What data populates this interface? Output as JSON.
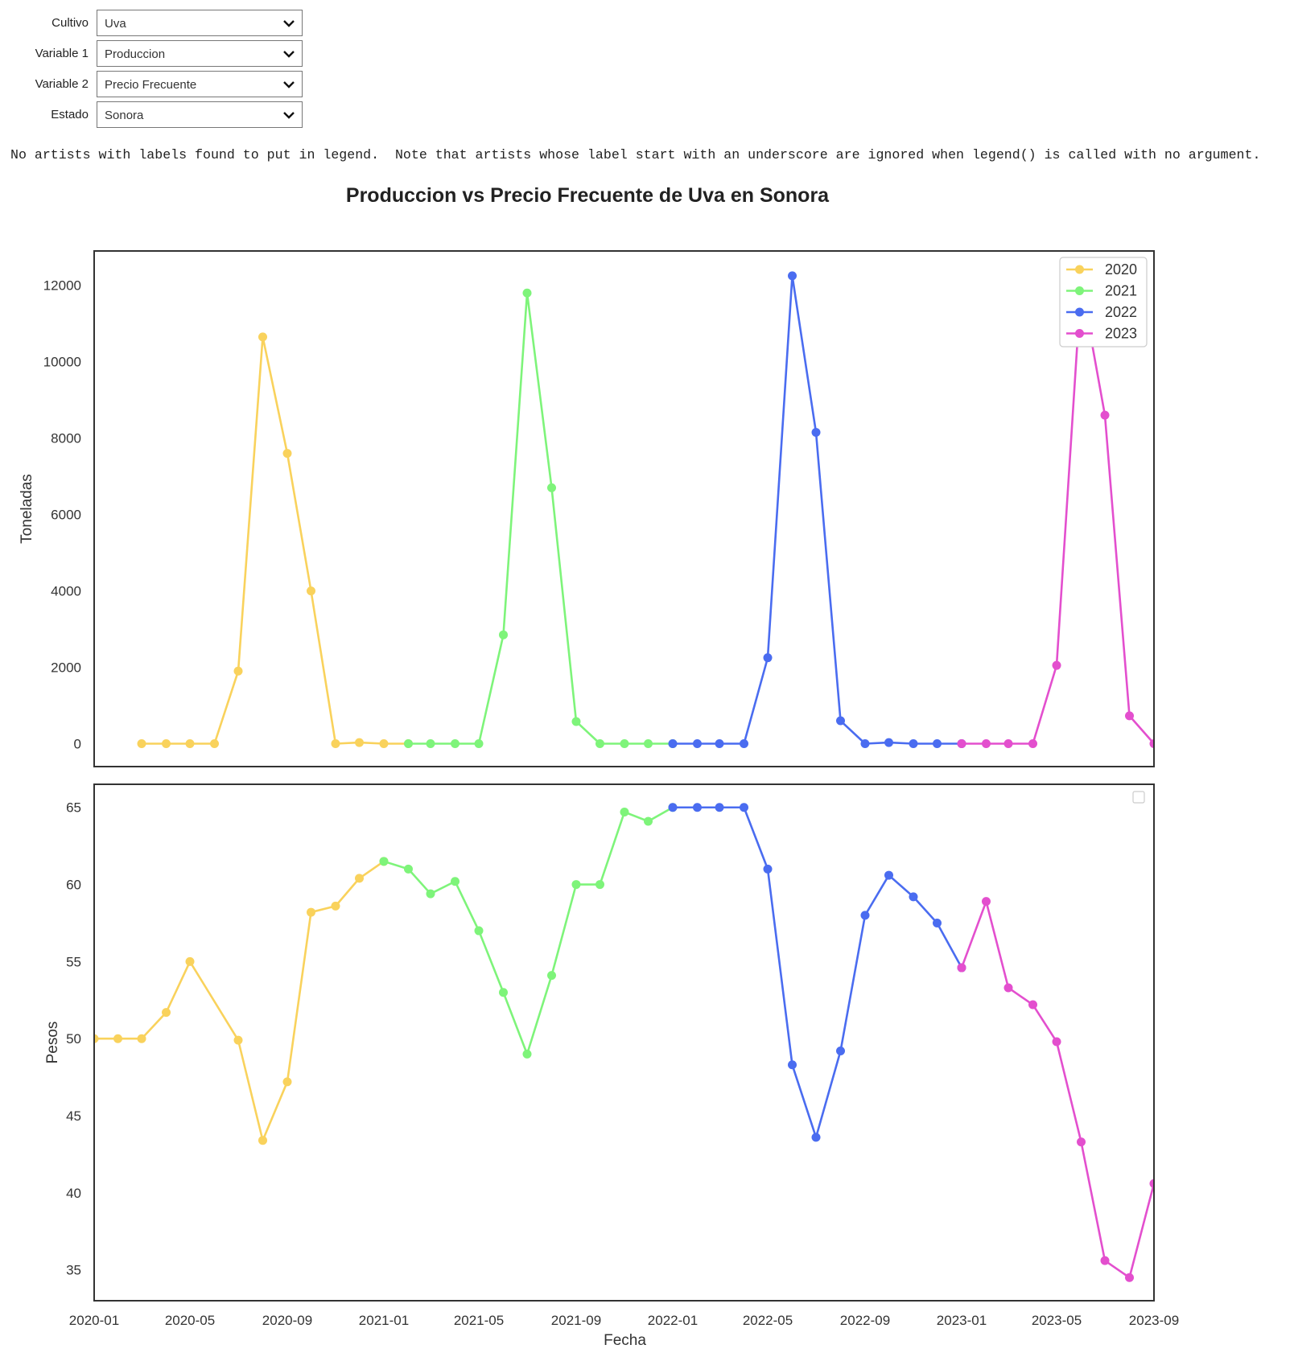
{
  "controls": [
    {
      "label": "Cultivo",
      "value": "Uva"
    },
    {
      "label": "Variable 1",
      "value": "Produccion"
    },
    {
      "label": "Variable 2",
      "value": "Precio Frecuente"
    },
    {
      "label": "Estado",
      "value": "Sonora"
    }
  ],
  "warning_text": "No artists with labels found to put in legend.  Note that artists whose label start with an underscore are ignored when legend() is called with no argument.",
  "colors": {
    "2020": "#f9d25c",
    "2021": "#7ef47a",
    "2022": "#4a6cf0",
    "2023": "#e34fce"
  },
  "chart_data": [
    {
      "type": "line",
      "title": "Produccion vs Precio Frecuente de Uva en Sonora",
      "xlabel": "",
      "ylabel": "Toneladas",
      "ylim": [
        -600,
        12900
      ],
      "yticks": [
        0,
        2000,
        4000,
        6000,
        8000,
        10000,
        12000
      ],
      "xlim": [
        "2020-01-01",
        "2023-09-01"
      ],
      "grid": false,
      "legend": "top-right",
      "series": [
        {
          "name": "2020",
          "color": "#f9d25c",
          "x": [
            "2020-03",
            "2020-04",
            "2020-05",
            "2020-06",
            "2020-07",
            "2020-08",
            "2020-09",
            "2020-10",
            "2020-11",
            "2020-12",
            "2021-01",
            "2021-02"
          ],
          "y": [
            0,
            0,
            0,
            0,
            1900,
            10650,
            7600,
            4000,
            0,
            30,
            0,
            0
          ]
        },
        {
          "name": "2021",
          "color": "#7ef47a",
          "x": [
            "2021-02",
            "2021-03",
            "2021-04",
            "2021-05",
            "2021-06",
            "2021-07",
            "2021-08",
            "2021-09",
            "2021-10",
            "2021-11",
            "2021-12",
            "2022-01"
          ],
          "y": [
            0,
            0,
            0,
            0,
            2850,
            11800,
            6700,
            580,
            0,
            0,
            0,
            0
          ]
        },
        {
          "name": "2022",
          "color": "#4a6cf0",
          "x": [
            "2022-01",
            "2022-02",
            "2022-03",
            "2022-04",
            "2022-05",
            "2022-06",
            "2022-07",
            "2022-08",
            "2022-09",
            "2022-10",
            "2022-11",
            "2022-12",
            "2023-01"
          ],
          "y": [
            0,
            0,
            0,
            0,
            2250,
            12250,
            8150,
            600,
            0,
            30,
            0,
            0,
            0
          ]
        },
        {
          "name": "2023",
          "color": "#e34fce",
          "x": [
            "2023-01",
            "2023-02",
            "2023-03",
            "2023-04",
            "2023-05",
            "2023-06",
            "2023-07",
            "2023-08",
            "2023-09"
          ],
          "y": [
            0,
            0,
            0,
            0,
            2050,
            12050,
            8600,
            730,
            0
          ]
        }
      ]
    },
    {
      "type": "line",
      "xlabel": "Fecha",
      "ylabel": "Pesos",
      "ylim": [
        33,
        66.5
      ],
      "yticks": [
        35,
        40,
        45,
        50,
        55,
        60,
        65
      ],
      "xlim": [
        "2020-01-01",
        "2023-09-01"
      ],
      "xticks": [
        "2020-01",
        "2020-05",
        "2020-09",
        "2021-01",
        "2021-05",
        "2021-09",
        "2022-01",
        "2022-05",
        "2022-09",
        "2023-01",
        "2023-05",
        "2023-09"
      ],
      "grid": false,
      "legend": "top-right (empty)",
      "series": [
        {
          "name": "2020",
          "color": "#f9d25c",
          "x": [
            "2020-01-01",
            "2020-01-31",
            "2020-03-01",
            "2020-04-01",
            "2020-05-01",
            "2020-07-01",
            "2020-08-01",
            "2020-09-01",
            "2020-10-01",
            "2020-11-01",
            "2020-12-01",
            "2021-01-01"
          ],
          "y": [
            50,
            50,
            50,
            51.7,
            55,
            49.9,
            43.4,
            47.2,
            58.2,
            58.6,
            60.4,
            61.5
          ]
        },
        {
          "name": "2021",
          "color": "#7ef47a",
          "x": [
            "2021-01-01",
            "2021-02-01",
            "2021-03-01",
            "2021-04-01",
            "2021-05-01",
            "2021-06-01",
            "2021-07-01",
            "2021-08-01",
            "2021-09-01",
            "2021-10-01",
            "2021-11-01",
            "2021-12-01",
            "2022-01-01"
          ],
          "y": [
            61.5,
            61,
            59.4,
            60.2,
            57,
            53,
            49,
            54.1,
            60,
            60,
            64.7,
            64.1,
            65
          ]
        },
        {
          "name": "2022",
          "color": "#4a6cf0",
          "x": [
            "2022-01-01",
            "2022-02-01",
            "2022-03-01",
            "2022-04-01",
            "2022-05-01",
            "2022-06-01",
            "2022-07-01",
            "2022-08-01",
            "2022-09-01",
            "2022-10-01",
            "2022-11-01",
            "2022-12-01",
            "2023-01-01"
          ],
          "y": [
            65,
            65,
            65,
            65,
            61,
            48.3,
            43.6,
            49.2,
            58,
            60.6,
            59.2,
            57.5,
            54.6
          ]
        },
        {
          "name": "2023",
          "color": "#e34fce",
          "x": [
            "2023-01-01",
            "2023-02-01",
            "2023-03-01",
            "2023-04-01",
            "2023-05-01",
            "2023-06-01",
            "2023-07-01",
            "2023-08-01",
            "2023-09-01"
          ],
          "y": [
            54.6,
            58.9,
            53.3,
            52.2,
            49.8,
            43.3,
            35.6,
            34.5,
            40.6
          ]
        }
      ]
    }
  ]
}
